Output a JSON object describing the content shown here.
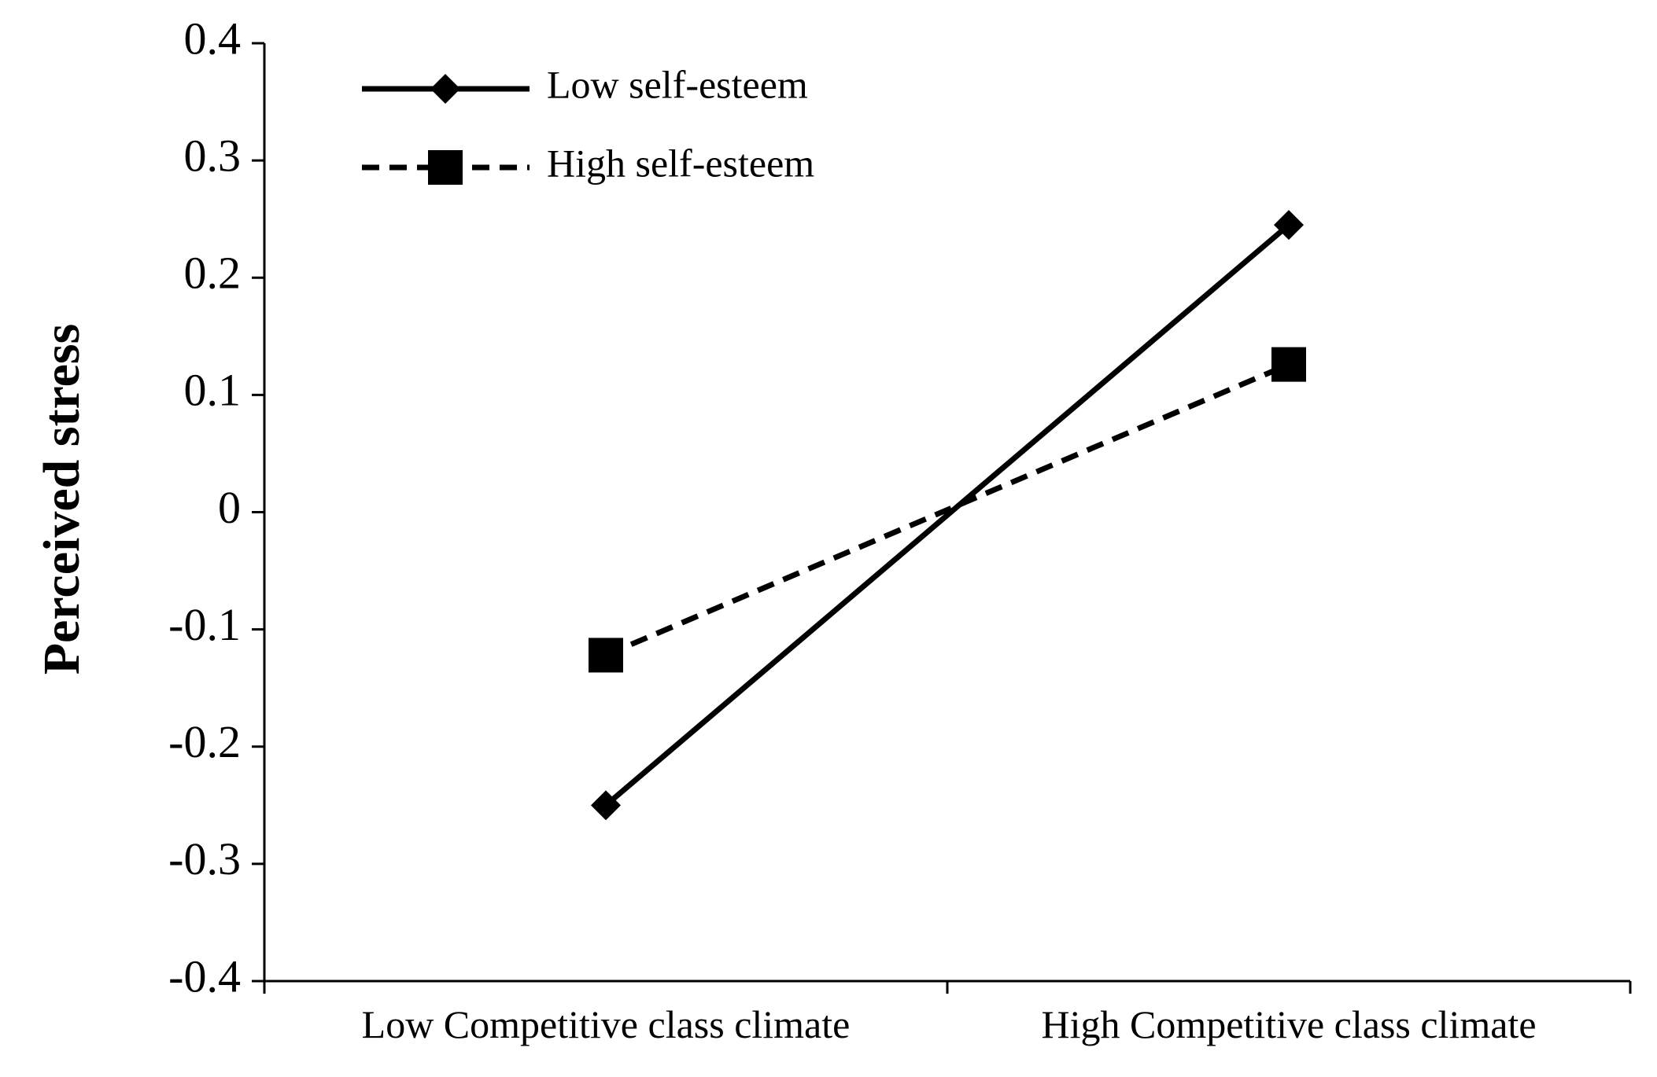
{
  "chart_data": {
    "type": "line",
    "title": "",
    "xlabel": "",
    "ylabel": "Perceived stress",
    "categories": [
      "Low Competitive class climate",
      "High Competitive class climate"
    ],
    "ylim": [
      -0.4,
      0.4
    ],
    "yticks": [
      0.4,
      0.3,
      0.2,
      0.1,
      0,
      -0.1,
      -0.2,
      -0.3,
      -0.4
    ],
    "ytick_labels": [
      "0.4",
      "0.3",
      "0.2",
      "0.1",
      "0",
      "-0.1",
      "-0.2",
      "-0.3",
      "-0.4"
    ],
    "grid": false,
    "legend_position": "top-left",
    "series": [
      {
        "name": "Low self-esteem",
        "values": [
          -0.25,
          0.245
        ],
        "line_style": "solid",
        "marker": "diamond",
        "color": "#000000"
      },
      {
        "name": "High self-esteem",
        "values": [
          -0.122,
          0.126
        ],
        "line_style": "dashed",
        "marker": "square",
        "color": "#000000"
      }
    ]
  }
}
